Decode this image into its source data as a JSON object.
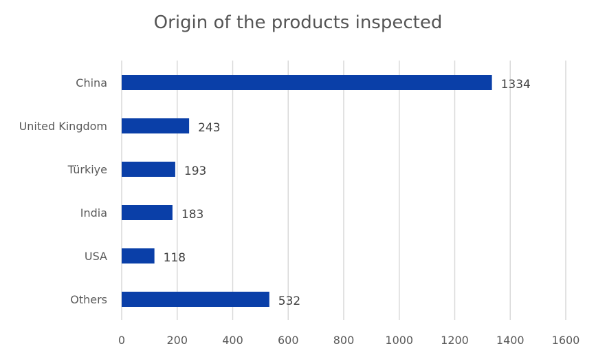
{
  "chart_data": {
    "type": "bar",
    "orientation": "horizontal",
    "title": "Origin of the products inspected",
    "categories": [
      "China",
      "United Kingdom",
      "Türkiye",
      "India",
      "USA",
      "Others"
    ],
    "values": [
      1334,
      243,
      193,
      183,
      118,
      532
    ],
    "data_labels": [
      "1334",
      "243",
      "193",
      "183",
      "118",
      "532"
    ],
    "xlim": [
      0,
      1600
    ],
    "xticks": [
      0,
      200,
      400,
      600,
      800,
      1000,
      1200,
      1400,
      1600
    ],
    "xtick_labels": [
      "0",
      "200",
      "400",
      "600",
      "800",
      "1000",
      "1200",
      "1400",
      "1600"
    ],
    "grid": true,
    "legend": "none",
    "bar_color": "#0a3fa8"
  }
}
